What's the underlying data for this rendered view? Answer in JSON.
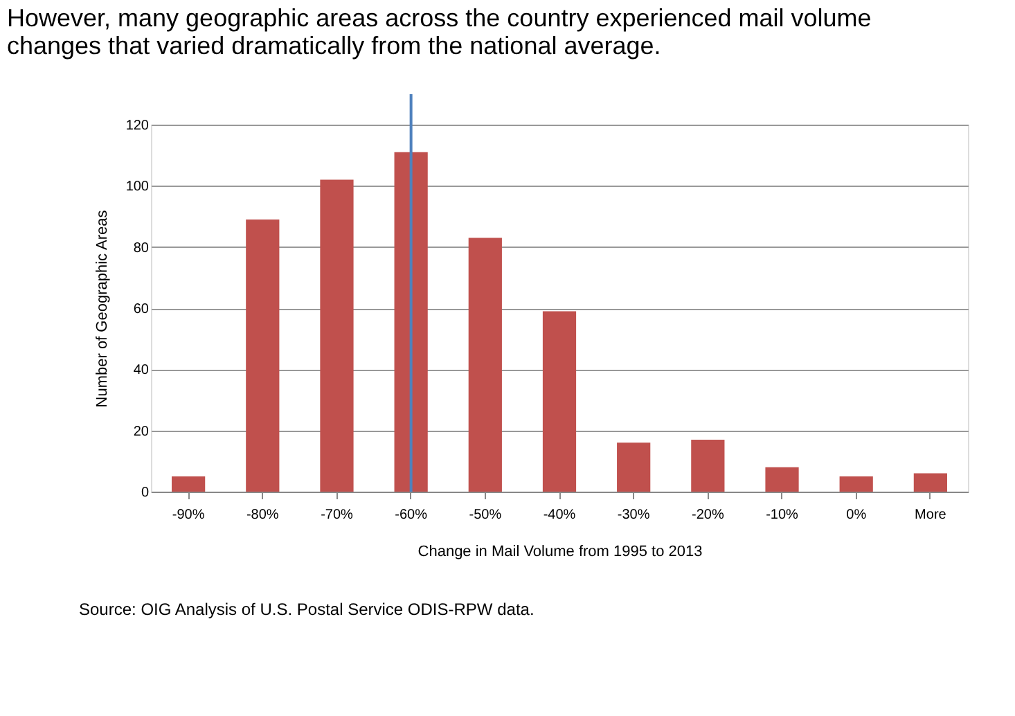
{
  "chart_data": {
    "type": "bar",
    "title": "However, many geographic areas across the country experienced mail volume changes that varied dramatically from the national average.",
    "xlabel": "Change in Mail Volume from 1995 to 2013",
    "ylabel": "Number of Geographic Areas",
    "categories": [
      "-90%",
      "-80%",
      "-70%",
      "-60%",
      "-50%",
      "-40%",
      "-30%",
      "-20%",
      "-10%",
      "0%",
      "More"
    ],
    "values": [
      5,
      89,
      102,
      111,
      83,
      59,
      16,
      17,
      8,
      5,
      6
    ],
    "color": "#c0504d",
    "ylim": [
      0,
      120
    ],
    "yticks": [
      0,
      20,
      40,
      60,
      80,
      100,
      120
    ],
    "grid": "y",
    "ref_lines": [
      {
        "axis": "x",
        "value": "-60%",
        "color": "#4f81bd"
      }
    ],
    "annotations": [
      "Source: OIG Analysis of U.S. Postal Service ODIS-RPW data."
    ]
  }
}
